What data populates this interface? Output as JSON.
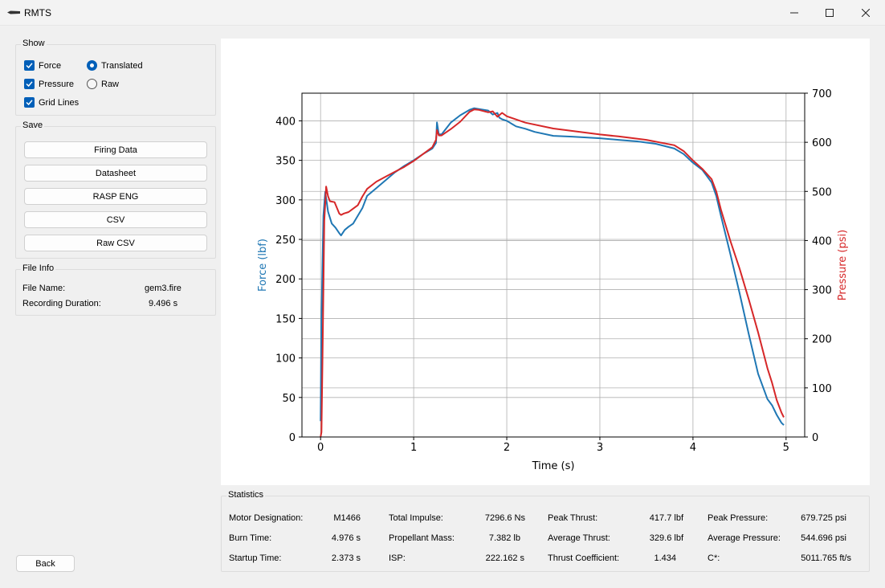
{
  "window": {
    "title": "RMTS"
  },
  "show": {
    "title": "Show",
    "force_label": "Force",
    "pressure_label": "Pressure",
    "grid_label": "Grid Lines",
    "translated_label": "Translated",
    "raw_label": "Raw",
    "force_checked": true,
    "pressure_checked": true,
    "grid_checked": true,
    "selected_mode": "Translated"
  },
  "save": {
    "title": "Save",
    "buttons": [
      "Firing Data",
      "Datasheet",
      "RASP ENG",
      "CSV",
      "Raw CSV"
    ]
  },
  "file_info": {
    "title": "File Info",
    "name_label": "File Name:",
    "name_value": "gem3.fire",
    "duration_label": "Recording Duration:",
    "duration_value": "9.496 s"
  },
  "back_label": "Back",
  "statistics": {
    "title": "Statistics",
    "items": [
      {
        "label": "Motor Designation:",
        "value": "M1466"
      },
      {
        "label": "Burn Time:",
        "value": "4.976 s"
      },
      {
        "label": "Startup Time:",
        "value": "2.373 s"
      },
      {
        "label": "Total Impulse:",
        "value": "7296.6 Ns"
      },
      {
        "label": "Propellant Mass:",
        "value": "7.382 lb"
      },
      {
        "label": "ISP:",
        "value": "222.162 s"
      },
      {
        "label": "Peak Thrust:",
        "value": "417.7 lbf"
      },
      {
        "label": "Average Thrust:",
        "value": "329.6 lbf"
      },
      {
        "label": "Thrust Coefficient:",
        "value": "1.434"
      },
      {
        "label": "Peak Pressure:",
        "value": "679.725 psi"
      },
      {
        "label": "Average Pressure:",
        "value": "544.696 psi"
      },
      {
        "label": "C*:",
        "value": "5011.765 ft/s"
      }
    ]
  },
  "chart_data": {
    "type": "line",
    "xlabel": "Time (s)",
    "ylabel": "Force (lbf)",
    "y2label": "Pressure (psi)",
    "xlim": [
      -0.2,
      5.2
    ],
    "ylim": [
      0,
      435
    ],
    "y2lim": [
      0,
      700
    ],
    "xticks": [
      0,
      1,
      2,
      3,
      4,
      5
    ],
    "yticks": [
      0,
      50,
      100,
      150,
      200,
      250,
      300,
      350,
      400
    ],
    "y2ticks": [
      0,
      100,
      200,
      300,
      400,
      500,
      600,
      700
    ],
    "grid": true,
    "colors": {
      "force": "#1f77b4",
      "pressure": "#d62728"
    },
    "series": [
      {
        "axis": "left",
        "x": [
          0,
          0.01,
          0.03,
          0.05,
          0.08,
          0.12,
          0.16,
          0.2,
          0.22,
          0.26,
          0.3,
          0.35,
          0.4,
          0.45,
          0.5,
          0.6,
          0.7,
          0.8,
          0.9,
          1.0,
          1.1,
          1.2,
          1.24,
          1.25,
          1.27,
          1.3,
          1.4,
          1.5,
          1.6,
          1.65,
          1.7,
          1.8,
          1.85,
          1.9,
          1.92,
          1.95,
          2.0,
          2.1,
          2.2,
          2.3,
          2.5,
          2.7,
          3.0,
          3.2,
          3.4,
          3.6,
          3.8,
          3.9,
          4.0,
          4.1,
          4.2,
          4.25,
          4.3,
          4.4,
          4.5,
          4.6,
          4.7,
          4.8,
          4.85,
          4.9,
          4.95,
          4.976
        ],
        "y": [
          20,
          150,
          280,
          310,
          285,
          270,
          265,
          258,
          255,
          262,
          266,
          270,
          280,
          290,
          305,
          315,
          325,
          335,
          343,
          350,
          358,
          365,
          372,
          398,
          383,
          383,
          398,
          407,
          414,
          416,
          415,
          413,
          408,
          410,
          404,
          402,
          400,
          393,
          390,
          386,
          381,
          380,
          378,
          376,
          374,
          371,
          365,
          358,
          347,
          338,
          322,
          305,
          280,
          232,
          182,
          130,
          80,
          48,
          40,
          28,
          18,
          15
        ]
      },
      {
        "axis": "right",
        "x": [
          0,
          0.01,
          0.02,
          0.04,
          0.06,
          0.08,
          0.1,
          0.15,
          0.2,
          0.22,
          0.25,
          0.3,
          0.35,
          0.4,
          0.45,
          0.5,
          0.6,
          0.7,
          0.8,
          0.9,
          1.0,
          1.1,
          1.2,
          1.24,
          1.25,
          1.27,
          1.3,
          1.4,
          1.5,
          1.6,
          1.65,
          1.7,
          1.8,
          1.85,
          1.9,
          1.95,
          2.0,
          2.2,
          2.5,
          3.0,
          3.2,
          3.5,
          3.8,
          3.9,
          4.0,
          4.1,
          4.2,
          4.25,
          4.3,
          4.4,
          4.5,
          4.6,
          4.7,
          4.8,
          4.85,
          4.9,
          4.95,
          4.976
        ],
        "y": [
          0,
          10,
          150,
          440,
          510,
          490,
          480,
          478,
          455,
          452,
          455,
          458,
          465,
          472,
          490,
          505,
          520,
          530,
          540,
          550,
          562,
          576,
          590,
          605,
          625,
          614,
          614,
          627,
          642,
          662,
          667,
          666,
          661,
          663,
          652,
          660,
          653,
          640,
          628,
          616,
          612,
          605,
          594,
          582,
          563,
          546,
          525,
          500,
          463,
          400,
          343,
          280,
          213,
          140,
          110,
          75,
          50,
          40
        ]
      }
    ]
  }
}
